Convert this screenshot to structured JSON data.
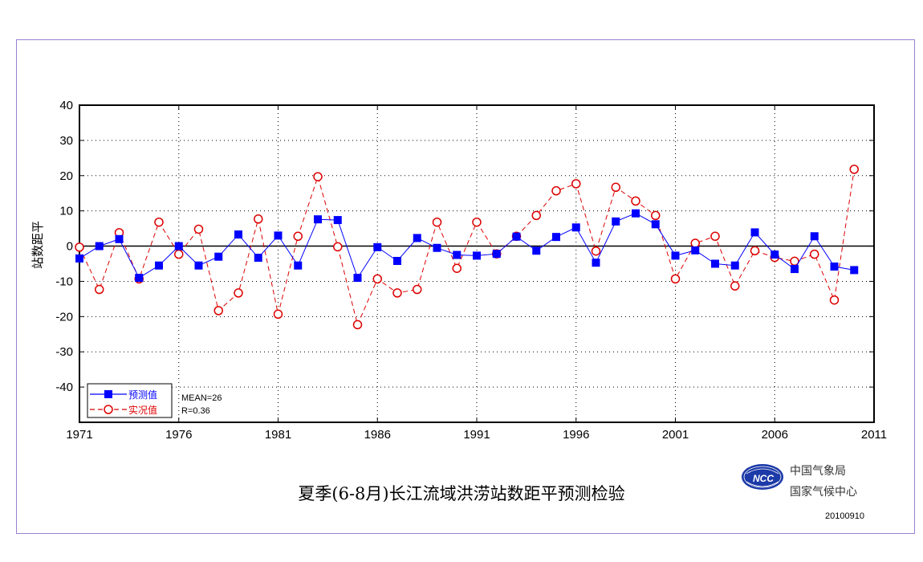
{
  "chart_data": {
    "type": "line",
    "title": "夏季(6-8月)长江流域洪涝站数距平预测检验",
    "xlabel": "",
    "ylabel": "站数距平",
    "xlim": [
      1971,
      2011
    ],
    "ylim": [
      -50,
      40
    ],
    "xticks": [
      "1971",
      "1976",
      "1981",
      "1986",
      "1991",
      "1996",
      "2001",
      "2006",
      "2011"
    ],
    "yticks": [
      "40",
      "30",
      "20",
      "10",
      "0",
      "-10",
      "-20",
      "-30",
      "-40"
    ],
    "x": [
      1971,
      1972,
      1973,
      1974,
      1975,
      1976,
      1977,
      1978,
      1979,
      1980,
      1981,
      1982,
      1983,
      1984,
      1985,
      1986,
      1987,
      1988,
      1989,
      1990,
      1991,
      1992,
      1993,
      1994,
      1995,
      1996,
      1997,
      1998,
      1999,
      2000,
      2001,
      2002,
      2003,
      2004,
      2005,
      2006,
      2007,
      2008,
      2009,
      2010
    ],
    "series": [
      {
        "name": "预测值",
        "color": "#0000ff",
        "marker": "square",
        "line": "solid",
        "values": [
          -3.5,
          0,
          2,
          -9,
          -5.5,
          0,
          -5.5,
          -3,
          3.3,
          -3.3,
          3,
          -5.5,
          7.6,
          7.4,
          -9,
          -0.3,
          -4.2,
          2.3,
          -0.5,
          -2.5,
          -2.7,
          -2.2,
          2.7,
          -1.3,
          2.6,
          5.3,
          -4.7,
          7,
          9.3,
          6.2,
          -2.7,
          -1.2,
          -5,
          -5.5,
          3.9,
          -2.4,
          -6.5,
          2.8,
          -5.8,
          -6.8
        ]
      },
      {
        "name": "实况值",
        "color": "#dd0000",
        "marker": "circle",
        "line": "dashed",
        "values": [
          -0.3,
          -12.3,
          3.8,
          -9.3,
          6.8,
          -2.3,
          4.8,
          -18.3,
          -13.3,
          7.7,
          -19.3,
          2.8,
          19.7,
          -0.2,
          -22.3,
          -9.3,
          -13.3,
          -12.3,
          6.8,
          -6.3,
          6.8,
          -2.2,
          2.8,
          8.7,
          15.7,
          17.7,
          -1.4,
          16.7,
          12.8,
          8.7,
          -9.3,
          0.8,
          2.8,
          -11.3,
          -1.3,
          -3.2,
          -4.3,
          -2.3,
          -15.3,
          21.8
        ]
      }
    ],
    "stats": {
      "mean": "MEAN=26",
      "r": "R=0.36"
    },
    "legend_position": "bottom-left",
    "grid": true
  },
  "footer": {
    "org_line1": "中国气象局",
    "org_line2": "国家气候中心",
    "logo_text": "NCC",
    "date": "20100910"
  },
  "colors": {
    "frame": "#9b7fd1",
    "logo": "#1c3aa8"
  }
}
